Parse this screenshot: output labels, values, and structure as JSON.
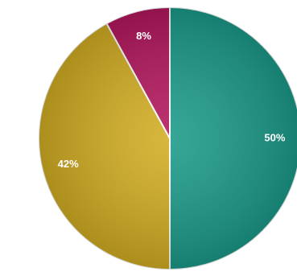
{
  "chart_data": {
    "type": "pie",
    "categories": [
      null,
      null,
      null
    ],
    "values": [
      50,
      42,
      8
    ],
    "value_labels": [
      "50%",
      "42%",
      "8%"
    ],
    "colors": [
      "#1b9a89",
      "#d2ad22",
      "#b3175d"
    ]
  }
}
